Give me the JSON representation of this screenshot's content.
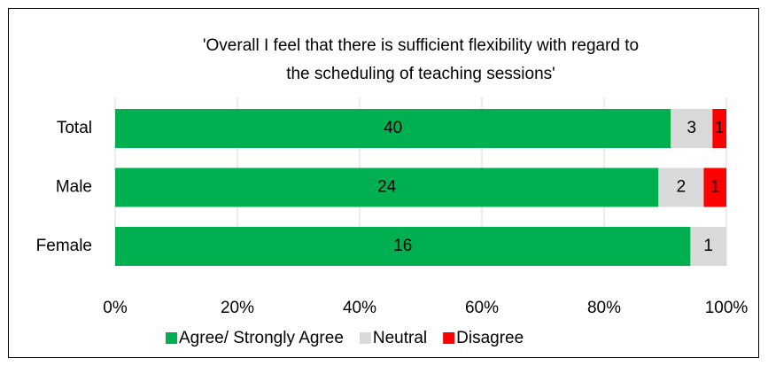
{
  "chart_data": {
    "type": "stacked_bar_100",
    "title": [
      "'Overall I feel that there is sufficient flexibility with regard to",
      "the scheduling of teaching sessions'"
    ],
    "categories": [
      "Total",
      "Male",
      "Female"
    ],
    "series": [
      {
        "name": "Agree/ Strongly Agree",
        "color": "#00b050",
        "values": [
          40,
          24,
          16
        ]
      },
      {
        "name": "Neutral",
        "color": "#d9d9d9",
        "values": [
          3,
          2,
          1
        ]
      },
      {
        "name": "Disagree",
        "color": "#ff0000",
        "values": [
          1,
          1,
          0
        ]
      }
    ],
    "xlim": [
      0,
      100
    ],
    "xticks": [
      {
        "value": 0,
        "label": "0%"
      },
      {
        "value": 20,
        "label": "20%"
      },
      {
        "value": 40,
        "label": "40%"
      },
      {
        "value": 60,
        "label": "60%"
      },
      {
        "value": 80,
        "label": "80%"
      },
      {
        "value": 100,
        "label": "100%"
      }
    ],
    "grid": true,
    "legend": "bottom"
  }
}
